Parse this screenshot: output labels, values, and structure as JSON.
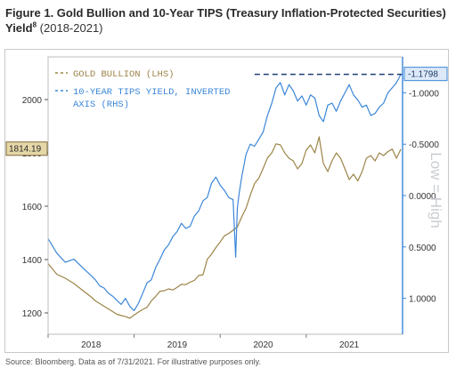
{
  "header": {
    "title_main": "Figure 1. Gold Bullion and 10-Year TIPS (Treasury Inflation-Protected Securities) Yield",
    "title_footnote": "8",
    "title_range": "(2018-2021)"
  },
  "footer": {
    "source": "Source: Bloomberg. Data as of 7/31/2021. For illustrative purposes only."
  },
  "colors": {
    "gold": "#9c8447",
    "tips": "#3a86d8",
    "dashed": "#1f3f7a",
    "last_tag_bg": "#dde9f8",
    "left_tag_bg": "#e6d7a8"
  },
  "chart_data": {
    "type": "line",
    "title": "Figure 1. Gold Bullion and 10-Year TIPS (Treasury Inflation-Protected Securities) Yield (2018-2021)",
    "x_tick_labels": [
      "2018",
      "2019",
      "2020",
      "2021"
    ],
    "y_left_ticks": [
      "1200",
      "1400",
      "1600",
      "1800",
      "2000"
    ],
    "y_left_range": [
      1120,
      2160
    ],
    "y_right_ticks": [
      "-1.0000",
      "-0.5000",
      "0.0000",
      "0.5000",
      "1.0000"
    ],
    "y_right_range_inverted": [
      1.35,
      -1.35
    ],
    "right_axis_note": "Low = High",
    "last_value_labels": {
      "left": "1814.19",
      "right": "-1.1798"
    },
    "legend": [
      "GOLD BULLION (LHS)",
      "10-YEAR TIPS YIELD, INVERTED",
      "AXIS (RHS)"
    ],
    "legend_position": "top-left",
    "reference_line": {
      "label": "-1.1798",
      "style": "dashed",
      "from_x": 2019.9,
      "to_x": 2021.6
    },
    "x_range": [
      2017.5,
      2021.62
    ],
    "series": [
      {
        "name": "GOLD BULLION (LHS)",
        "axis": "left",
        "x": [
          2017.5,
          2017.6,
          2017.7,
          2017.8,
          2017.9,
          2018.0,
          2018.05,
          2018.1,
          2018.15,
          2018.2,
          2018.25,
          2018.3,
          2018.35,
          2018.4,
          2018.45,
          2018.5,
          2018.55,
          2018.6,
          2018.65,
          2018.7,
          2018.75,
          2018.8,
          2018.85,
          2018.9,
          2018.95,
          2019.0,
          2019.05,
          2019.1,
          2019.15,
          2019.2,
          2019.25,
          2019.3,
          2019.35,
          2019.4,
          2019.45,
          2019.5,
          2019.55,
          2019.6,
          2019.65,
          2019.7,
          2019.75,
          2019.8,
          2019.85,
          2019.9,
          2019.95,
          2020.0,
          2020.05,
          2020.1,
          2020.15,
          2020.2,
          2020.25,
          2020.3,
          2020.35,
          2020.4,
          2020.45,
          2020.5,
          2020.55,
          2020.6,
          2020.65,
          2020.7,
          2020.75,
          2020.8,
          2020.85,
          2020.9,
          2020.95,
          2021.0,
          2021.05,
          2021.1,
          2021.15,
          2021.2,
          2021.25,
          2021.3,
          2021.35,
          2021.4,
          2021.45,
          2021.5,
          2021.55,
          2021.6
        ],
        "values": [
          1385,
          1345,
          1330,
          1310,
          1285,
          1260,
          1245,
          1235,
          1225,
          1215,
          1205,
          1195,
          1190,
          1186,
          1180,
          1192,
          1203,
          1213,
          1221,
          1245,
          1262,
          1281,
          1283,
          1290,
          1286,
          1296,
          1307,
          1306,
          1315,
          1322,
          1340,
          1343,
          1401,
          1420,
          1445,
          1466,
          1489,
          1498,
          1510,
          1522,
          1560,
          1592,
          1641,
          1685,
          1706,
          1742,
          1781,
          1800,
          1834,
          1830,
          1800,
          1780,
          1770,
          1740,
          1760,
          1810,
          1830,
          1800,
          1860,
          1760,
          1730,
          1770,
          1800,
          1780,
          1740,
          1700,
          1720,
          1695,
          1730,
          1780,
          1790,
          1770,
          1800,
          1790,
          1805,
          1814,
          1780,
          1814
        ]
      },
      {
        "name": "10-YEAR TIPS YIELD, INVERTED AXIS (RHS)",
        "axis": "right",
        "x": [
          2017.5,
          2017.6,
          2017.7,
          2017.8,
          2017.9,
          2018.0,
          2018.05,
          2018.1,
          2018.15,
          2018.2,
          2018.25,
          2018.3,
          2018.35,
          2018.4,
          2018.45,
          2018.5,
          2018.55,
          2018.6,
          2018.65,
          2018.7,
          2018.75,
          2018.8,
          2018.85,
          2018.9,
          2018.95,
          2019.0,
          2019.05,
          2019.1,
          2019.15,
          2019.2,
          2019.25,
          2019.3,
          2019.35,
          2019.4,
          2019.45,
          2019.5,
          2019.55,
          2019.6,
          2019.65,
          2019.68,
          2019.7,
          2019.72,
          2019.75,
          2019.8,
          2019.85,
          2019.9,
          2019.95,
          2020.0,
          2020.05,
          2020.1,
          2020.15,
          2020.2,
          2020.25,
          2020.3,
          2020.35,
          2020.4,
          2020.45,
          2020.5,
          2020.55,
          2020.6,
          2020.65,
          2020.7,
          2020.75,
          2020.8,
          2020.85,
          2020.9,
          2020.95,
          2021.0,
          2021.05,
          2021.1,
          2021.15,
          2021.2,
          2021.25,
          2021.3,
          2021.35,
          2021.4,
          2021.45,
          2021.5,
          2021.55,
          2021.6
        ],
        "values": [
          0.42,
          0.56,
          0.65,
          0.62,
          0.7,
          0.78,
          0.82,
          0.88,
          0.9,
          0.95,
          0.98,
          1.02,
          1.06,
          1.0,
          1.08,
          1.12,
          1.05,
          0.95,
          0.85,
          0.82,
          0.7,
          0.62,
          0.53,
          0.48,
          0.4,
          0.35,
          0.27,
          0.32,
          0.3,
          0.2,
          0.15,
          0.05,
          0.02,
          -0.12,
          -0.18,
          -0.1,
          -0.05,
          0.02,
          0.04,
          0.6,
          0.12,
          -0.02,
          -0.18,
          -0.4,
          -0.5,
          -0.48,
          -0.55,
          -0.62,
          -0.78,
          -0.9,
          -1.05,
          -1.1,
          -0.98,
          -1.08,
          -1.02,
          -0.92,
          -0.97,
          -0.88,
          -0.98,
          -0.95,
          -0.78,
          -0.72,
          -0.88,
          -0.9,
          -0.82,
          -0.92,
          -1.0,
          -1.08,
          -0.98,
          -0.93,
          -0.86,
          -0.88,
          -0.78,
          -0.8,
          -0.86,
          -0.9,
          -1.0,
          -1.05,
          -1.1,
          -1.18
        ]
      }
    ]
  }
}
